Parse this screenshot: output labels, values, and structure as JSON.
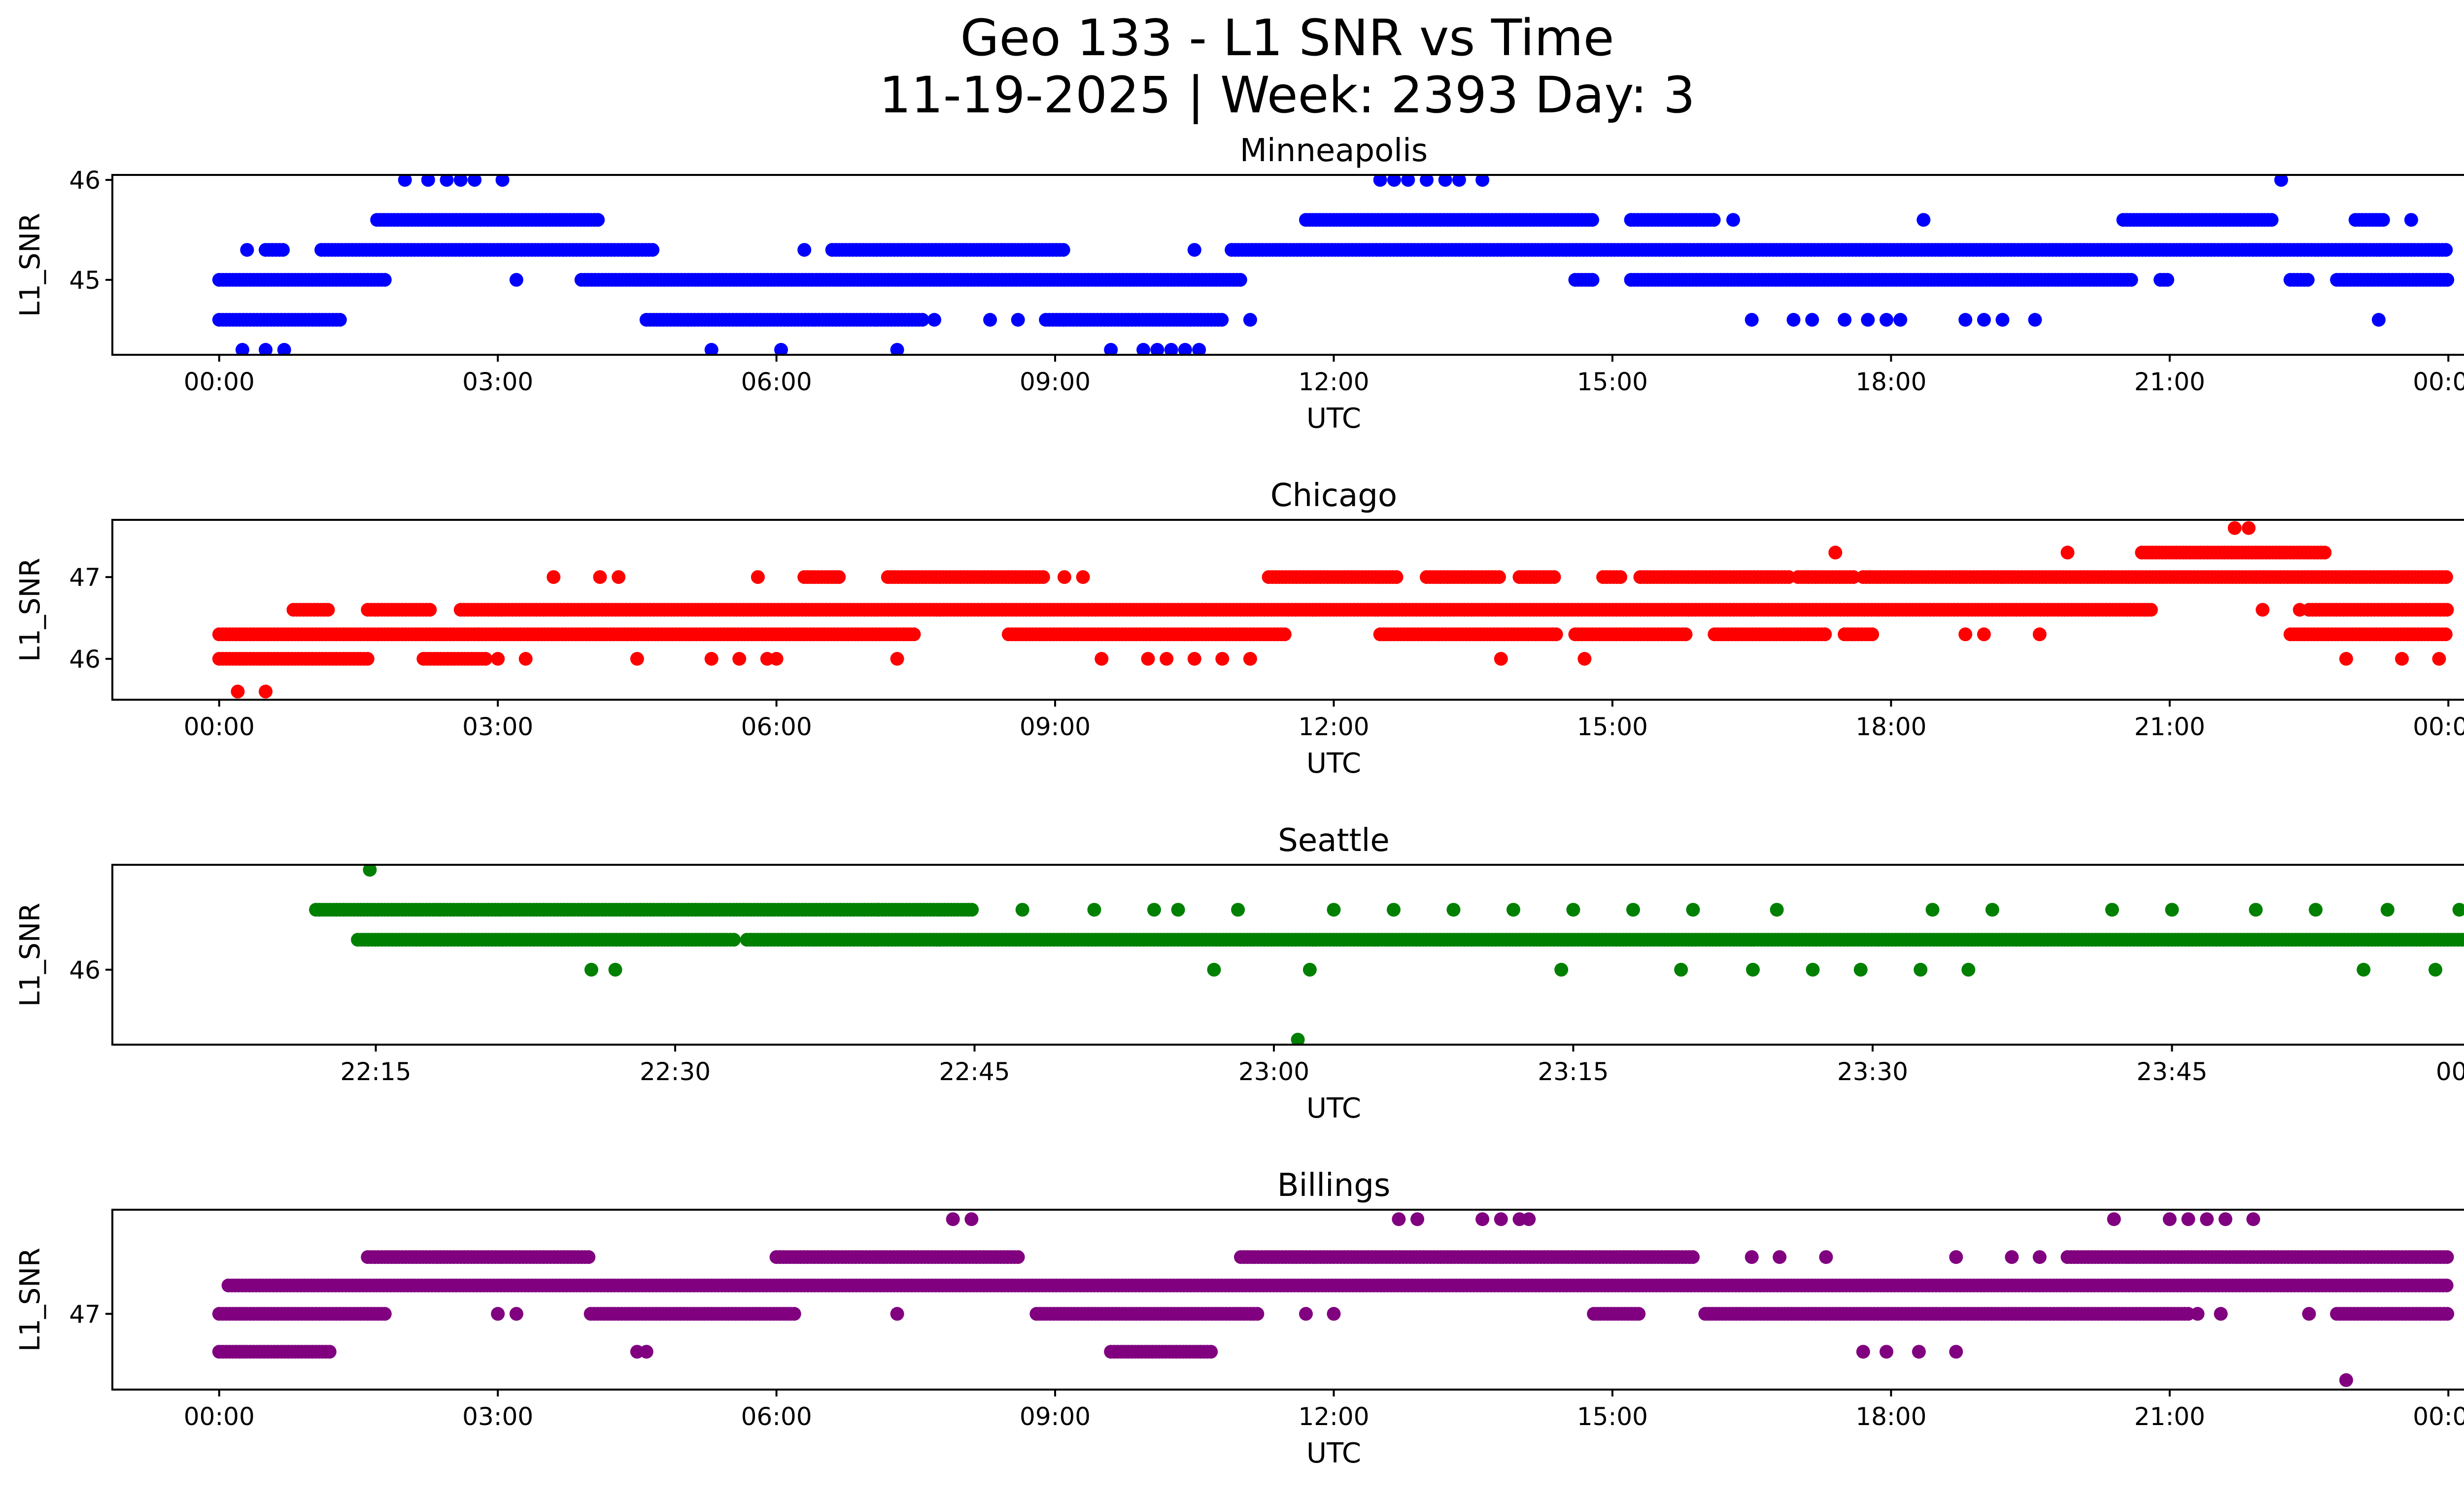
{
  "figure": {
    "title_line1": "Geo 133 - L1 SNR vs Time",
    "title_line2": "11-19-2025 | Week: 2393 Day: 3"
  },
  "chart_data": [
    {
      "type": "scatter",
      "title": "Minneapolis",
      "xlabel": "UTC",
      "ylabel": "L1_SNR",
      "color": "#0000ff",
      "x_unit": "hours",
      "xlim": [
        -1.15,
        25.15
      ],
      "ylim": [
        44.25,
        46.05
      ],
      "xticks": [
        0,
        3,
        6,
        9,
        12,
        15,
        18,
        21,
        24
      ],
      "xtick_labels": [
        "00:00",
        "03:00",
        "06:00",
        "09:00",
        "12:00",
        "15:00",
        "18:00",
        "21:00",
        "00:00"
      ],
      "yticks": [
        45,
        46
      ],
      "ytick_labels": [
        "45",
        "46"
      ],
      "segments": [
        {
          "y": 45.0,
          "ranges": [
            [
              0,
              1.8
            ],
            [
              3.9,
              11.0
            ],
            [
              14.6,
              14.8
            ],
            [
              15.2,
              20.6
            ],
            [
              20.9,
              21.0
            ],
            [
              22.3,
              22.5
            ],
            [
              22.8,
              24.0
            ]
          ]
        },
        {
          "y": 44.6,
          "ranges": [
            [
              0,
              1.3
            ],
            [
              4.6,
              7.6
            ],
            [
              8.9,
              10.8
            ]
          ]
        },
        {
          "y": 45.3,
          "ranges": [
            [
              0.5,
              0.7
            ],
            [
              1.1,
              4.7
            ],
            [
              6.6,
              9.1
            ],
            [
              10.9,
              24.0
            ]
          ]
        },
        {
          "y": 45.6,
          "ranges": [
            [
              1.7,
              4.1
            ],
            [
              11.7,
              14.8
            ],
            [
              15.2,
              16.1
            ],
            [
              20.5,
              22.1
            ],
            [
              23.0,
              23.3
            ]
          ]
        }
      ],
      "points": [
        [
          0.25,
          44.3
        ],
        [
          0.5,
          44.3
        ],
        [
          0.7,
          44.3
        ],
        [
          0.3,
          45.3
        ],
        [
          2.0,
          46.0
        ],
        [
          2.25,
          46.0
        ],
        [
          2.45,
          46.0
        ],
        [
          2.6,
          46.0
        ],
        [
          2.75,
          46.0
        ],
        [
          3.05,
          46.0
        ],
        [
          3.2,
          45.0
        ],
        [
          5.3,
          44.3
        ],
        [
          6.05,
          44.3
        ],
        [
          7.3,
          44.3
        ],
        [
          6.3,
          45.3
        ],
        [
          7.7,
          44.6
        ],
        [
          8.3,
          44.6
        ],
        [
          8.6,
          44.6
        ],
        [
          10.5,
          45.3
        ],
        [
          11.1,
          44.6
        ],
        [
          9.6,
          44.3
        ],
        [
          9.95,
          44.3
        ],
        [
          10.1,
          44.3
        ],
        [
          10.25,
          44.3
        ],
        [
          10.4,
          44.3
        ],
        [
          10.55,
          44.3
        ],
        [
          12.5,
          46.0
        ],
        [
          12.65,
          46.0
        ],
        [
          12.8,
          46.0
        ],
        [
          13.0,
          46.0
        ],
        [
          13.2,
          46.0
        ],
        [
          13.35,
          46.0
        ],
        [
          13.6,
          46.0
        ],
        [
          16.5,
          44.6
        ],
        [
          16.95,
          44.6
        ],
        [
          17.15,
          44.6
        ],
        [
          17.5,
          44.6
        ],
        [
          17.75,
          44.6
        ],
        [
          17.95,
          44.6
        ],
        [
          18.1,
          44.6
        ],
        [
          16.3,
          45.6
        ],
        [
          18.35,
          45.6
        ],
        [
          18.8,
          44.6
        ],
        [
          19.0,
          44.6
        ],
        [
          19.2,
          44.6
        ],
        [
          19.55,
          44.6
        ],
        [
          22.2,
          46.0
        ],
        [
          23.25,
          44.6
        ],
        [
          23.6,
          45.6
        ]
      ]
    },
    {
      "type": "scatter",
      "title": "Chicago",
      "xlabel": "UTC",
      "ylabel": "L1_SNR",
      "color": "#ff0000",
      "x_unit": "hours",
      "xlim": [
        -1.15,
        25.15
      ],
      "ylim": [
        45.5,
        47.7
      ],
      "xticks": [
        0,
        3,
        6,
        9,
        12,
        15,
        18,
        21,
        24
      ],
      "xtick_labels": [
        "00:00",
        "03:00",
        "06:00",
        "09:00",
        "12:00",
        "15:00",
        "18:00",
        "21:00",
        "00:00"
      ],
      "yticks": [
        46,
        47
      ],
      "ytick_labels": [
        "46",
        "47"
      ],
      "segments": [
        {
          "y": 46.3,
          "ranges": [
            [
              0,
              2.8
            ],
            [
              2.8,
              7.5
            ],
            [
              8.5,
              11.5
            ],
            [
              12.5,
              14.4
            ],
            [
              14.6,
              15.8
            ],
            [
              16.1,
              17.3
            ],
            [
              17.5,
              17.8
            ],
            [
              22.3,
              24.0
            ]
          ]
        },
        {
          "y": 46.0,
          "ranges": [
            [
              0,
              1.6
            ],
            [
              2.2,
              2.9
            ]
          ]
        },
        {
          "y": 46.6,
          "ranges": [
            [
              0.8,
              1.2
            ],
            [
              1.6,
              2.3
            ],
            [
              2.6,
              20.8
            ],
            [
              22.5,
              24.0
            ]
          ]
        },
        {
          "y": 47.0,
          "ranges": [
            [
              6.3,
              6.7
            ],
            [
              7.2,
              8.9
            ],
            [
              11.3,
              12.7
            ],
            [
              13.0,
              13.8
            ],
            [
              14.0,
              14.4
            ],
            [
              14.9,
              15.1
            ],
            [
              15.3,
              16.9
            ],
            [
              17.0,
              17.6
            ],
            [
              17.7,
              24.0
            ]
          ]
        },
        {
          "y": 47.3,
          "ranges": [
            [
              20.7,
              22.7
            ]
          ]
        }
      ],
      "points": [
        [
          0.2,
          45.6
        ],
        [
          0.5,
          45.6
        ],
        [
          3.0,
          46.0
        ],
        [
          3.3,
          46.0
        ],
        [
          3.6,
          47.0
        ],
        [
          4.1,
          47.0
        ],
        [
          4.3,
          47.0
        ],
        [
          4.5,
          46.0
        ],
        [
          5.3,
          46.0
        ],
        [
          5.6,
          46.0
        ],
        [
          5.9,
          46.0
        ],
        [
          5.8,
          47.0
        ],
        [
          6.0,
          46.0
        ],
        [
          7.3,
          46.0
        ],
        [
          9.1,
          47.0
        ],
        [
          9.3,
          47.0
        ],
        [
          9.5,
          46.0
        ],
        [
          10.0,
          46.0
        ],
        [
          10.2,
          46.0
        ],
        [
          10.5,
          46.0
        ],
        [
          10.8,
          46.0
        ],
        [
          11.1,
          46.0
        ],
        [
          13.8,
          46.0
        ],
        [
          14.7,
          46.0
        ],
        [
          17.4,
          47.3
        ],
        [
          18.8,
          46.3
        ],
        [
          19.0,
          46.3
        ],
        [
          19.6,
          46.3
        ],
        [
          19.9,
          47.3
        ],
        [
          21.7,
          47.6
        ],
        [
          21.85,
          47.6
        ],
        [
          22.0,
          46.6
        ],
        [
          22.4,
          46.6
        ],
        [
          22.9,
          46.0
        ],
        [
          23.5,
          46.0
        ],
        [
          23.9,
          46.0
        ]
      ]
    },
    {
      "type": "scatter",
      "title": "Seattle",
      "xlabel": "UTC",
      "ylabel": "L1_SNR",
      "color": "#008000",
      "x_unit": "minutes",
      "xlim": [
        22.03,
        24.07
      ],
      "ylim": [
        45.25,
        47.05
      ],
      "xticks": [
        22.25,
        22.5,
        22.75,
        23.0,
        23.25,
        23.5,
        23.75,
        24.0
      ],
      "xtick_labels": [
        "22:15",
        "22:30",
        "22:45",
        "23:00",
        "23:15",
        "23:30",
        "23:45",
        "00:00"
      ],
      "yticks": [
        46
      ],
      "ytick_labels": [
        "46"
      ],
      "segments": [
        {
          "y": 46.6,
          "ranges": [
            [
              22.2,
              22.67
            ],
            [
              22.67,
              22.75
            ]
          ]
        },
        {
          "y": 46.3,
          "ranges": [
            [
              22.235,
              22.55
            ],
            [
              22.56,
              24.0
            ]
          ]
        }
      ],
      "points": [
        [
          22.245,
          47.0
        ],
        [
          22.43,
          46.0
        ],
        [
          22.45,
          46.0
        ],
        [
          22.79,
          46.6
        ],
        [
          22.85,
          46.6
        ],
        [
          22.9,
          46.6
        ],
        [
          22.92,
          46.6
        ],
        [
          22.97,
          46.6
        ],
        [
          22.95,
          46.0
        ],
        [
          23.03,
          46.0
        ],
        [
          23.05,
          46.6
        ],
        [
          23.1,
          46.6
        ],
        [
          23.15,
          46.6
        ],
        [
          23.2,
          46.6
        ],
        [
          23.25,
          46.6
        ],
        [
          23.3,
          46.6
        ],
        [
          23.02,
          45.3
        ],
        [
          23.24,
          46.0
        ],
        [
          23.34,
          46.0
        ],
        [
          23.4,
          46.0
        ],
        [
          23.45,
          46.0
        ],
        [
          23.49,
          46.0
        ],
        [
          23.54,
          46.0
        ],
        [
          23.58,
          46.0
        ],
        [
          23.35,
          46.6
        ],
        [
          23.42,
          46.6
        ],
        [
          23.55,
          46.6
        ],
        [
          23.6,
          46.6
        ],
        [
          23.7,
          46.6
        ],
        [
          23.75,
          46.6
        ],
        [
          23.82,
          46.6
        ],
        [
          23.87,
          46.6
        ],
        [
          23.93,
          46.6
        ],
        [
          23.99,
          46.6
        ],
        [
          23.91,
          46.0
        ],
        [
          23.97,
          46.0
        ]
      ]
    },
    {
      "type": "scatter",
      "title": "Billings",
      "xlabel": "UTC",
      "ylabel": "L1_SNR",
      "color": "#800080",
      "x_unit": "hours",
      "xlim": [
        -1.15,
        25.15
      ],
      "ylim": [
        46.2,
        48.1
      ],
      "xticks": [
        0,
        3,
        6,
        9,
        12,
        15,
        18,
        21,
        24
      ],
      "xtick_labels": [
        "00:00",
        "03:00",
        "06:00",
        "09:00",
        "12:00",
        "15:00",
        "18:00",
        "21:00",
        "00:00"
      ],
      "yticks": [
        47
      ],
      "ytick_labels": [
        "47"
      ],
      "segments": [
        {
          "y": 47.0,
          "ranges": [
            [
              0,
              1.8
            ],
            [
              4.0,
              6.2
            ],
            [
              8.8,
              11.2
            ],
            [
              14.8,
              15.3
            ],
            [
              16.0,
              21.2
            ],
            [
              22.8,
              24.0
            ]
          ]
        },
        {
          "y": 46.6,
          "ranges": [
            [
              0,
              1.2
            ],
            [
              9.6,
              10.7
            ]
          ]
        },
        {
          "y": 47.3,
          "ranges": [
            [
              0.1,
              24.0
            ]
          ]
        },
        {
          "y": 47.6,
          "ranges": [
            [
              1.6,
              4.0
            ],
            [
              6.0,
              8.6
            ],
            [
              11.0,
              15.9
            ],
            [
              19.9,
              24.0
            ]
          ]
        }
      ],
      "points": [
        [
          3.0,
          47.0
        ],
        [
          3.2,
          47.0
        ],
        [
          4.5,
          46.6
        ],
        [
          4.6,
          46.6
        ],
        [
          7.3,
          47.0
        ],
        [
          7.9,
          48.0
        ],
        [
          8.1,
          48.0
        ],
        [
          11.7,
          47.0
        ],
        [
          12.0,
          47.0
        ],
        [
          12.7,
          48.0
        ],
        [
          12.9,
          48.0
        ],
        [
          13.6,
          48.0
        ],
        [
          13.8,
          48.0
        ],
        [
          14.0,
          48.0
        ],
        [
          14.1,
          48.0
        ],
        [
          16.5,
          47.6
        ],
        [
          16.8,
          47.6
        ],
        [
          17.3,
          47.6
        ],
        [
          17.7,
          46.6
        ],
        [
          17.95,
          46.6
        ],
        [
          18.3,
          46.6
        ],
        [
          18.7,
          46.6
        ],
        [
          18.7,
          47.6
        ],
        [
          19.3,
          47.6
        ],
        [
          19.6,
          47.6
        ],
        [
          20.4,
          48.0
        ],
        [
          21.0,
          48.0
        ],
        [
          21.2,
          48.0
        ],
        [
          21.4,
          48.0
        ],
        [
          21.6,
          48.0
        ],
        [
          21.9,
          48.0
        ],
        [
          21.3,
          47.0
        ],
        [
          21.55,
          47.0
        ],
        [
          22.5,
          47.0
        ],
        [
          22.9,
          46.3
        ]
      ]
    }
  ]
}
